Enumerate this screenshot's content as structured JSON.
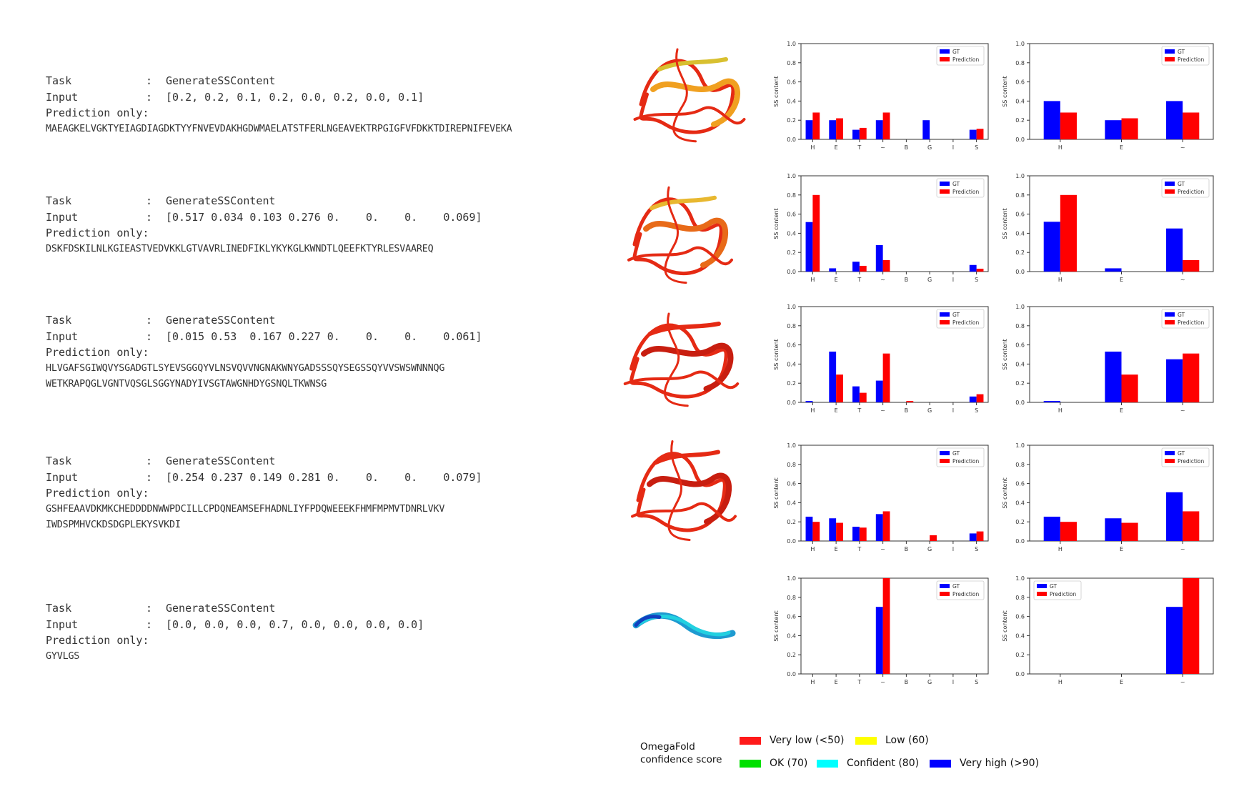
{
  "rows": [
    {
      "task_label": "Task",
      "task_value": "GenerateSSContent",
      "input_label": "Input",
      "input_value": "[0.2, 0.2, 0.1, 0.2, 0.0, 0.2, 0.0, 0.1]",
      "pred_label": "Prediction only:",
      "sequence": [
        "MAEAGKELVGKTYEIAGDIAGDKTYYFNVEVDAKHGDWMAELATSTFERLNGEAVEKTRPGIGFVFDKKTDIREPNIFEVEKA"
      ],
      "structure_colors": [
        "#e52a14",
        "#f0a020",
        "#d8c030"
      ]
    },
    {
      "task_label": "Task",
      "task_value": "GenerateSSContent",
      "input_label": "Input",
      "input_value": "[0.517 0.034 0.103 0.276 0.    0.    0.    0.069]",
      "pred_label": "Prediction only:",
      "sequence": [
        "DSKFDSKILNLKGIEASTVEDVKKLGTVAVRLINEDFIKLYKYKGLKWNDTLQEEFKTYRLESVAAREQ"
      ],
      "structure_colors": [
        "#e52a14",
        "#e86a18",
        "#e8b830"
      ]
    },
    {
      "task_label": "Task",
      "task_value": "GenerateSSContent",
      "input_label": "Input",
      "input_value": "[0.015 0.53  0.167 0.227 0.    0.    0.    0.061]",
      "pred_label": "Prediction only:",
      "sequence": [
        "HLVGAFSGIWQVYSGADGTLSYEVSGGQYVLNSVQVVNGNAKWNYGADSSSQYSEGSSQYVVSWSWNNNQG",
        "WETKRAPQGLVGNTVQSGLSGGYNADYIVSGTAWGNHDYGSNQLTKWNSG"
      ],
      "structure_colors": [
        "#e52a14",
        "#c81e10",
        "#e52a14"
      ]
    },
    {
      "task_label": "Task",
      "task_value": "GenerateSSContent",
      "input_label": "Input",
      "input_value": "[0.254 0.237 0.149 0.281 0.    0.    0.    0.079]",
      "pred_label": "Prediction only:",
      "sequence": [
        "GSHFEAAVDKMKCHEDDDDNWWPDCILLCPDQNEAMSEFHADNLIYFPDQWEEEKFHMFMPMVTDNRLVKV",
        "IWDSPMHVCKDSDGPLEKYSVKDI"
      ],
      "structure_colors": [
        "#e52a14",
        "#c81e10",
        "#e52a14"
      ]
    },
    {
      "task_label": "Task",
      "task_value": "GenerateSSContent",
      "input_label": "Input",
      "input_value": "[0.0, 0.0, 0.0, 0.7, 0.0, 0.0, 0.0, 0.0]",
      "pred_label": "Prediction only:",
      "sequence": [
        "GYVLGS"
      ],
      "structure_colors": [
        "#1e9ad0",
        "#22d0e0",
        "#1040c0"
      ]
    }
  ],
  "legend": {
    "title_line1": "OmegaFold",
    "title_line2": "confidence score",
    "items": [
      {
        "label": "Very low (<50)",
        "color": "#ff1a1a"
      },
      {
        "label": "Low (60)",
        "color": "#ffff00"
      },
      {
        "label": "OK (70)",
        "color": "#00e000"
      },
      {
        "label": "Confident (80)",
        "color": "#00ffff"
      },
      {
        "label": "Very high (>90)",
        "color": "#0000ff"
      }
    ]
  },
  "chart_data": [
    {
      "type": "bar",
      "row": 1,
      "panel": "8-class",
      "categories": [
        "H",
        "E",
        "T",
        "~",
        "B",
        "G",
        "I",
        "S"
      ],
      "ylabel": "SS content",
      "ylim": [
        0,
        1.0
      ],
      "yticks": [
        0.0,
        0.2,
        0.4,
        0.6,
        0.8,
        1.0
      ],
      "legend_position": "top-right",
      "series": [
        {
          "name": "GT",
          "color": "#0000ff",
          "values": [
            0.2,
            0.2,
            0.1,
            0.2,
            0.0,
            0.2,
            0.0,
            0.1
          ]
        },
        {
          "name": "Prediction",
          "color": "#ff0000",
          "values": [
            0.28,
            0.22,
            0.12,
            0.28,
            0.0,
            0.0,
            0.0,
            0.11
          ]
        }
      ]
    },
    {
      "type": "bar",
      "row": 1,
      "panel": "3-class",
      "categories": [
        "H",
        "E",
        "~"
      ],
      "ylabel": "SS content",
      "ylim": [
        0,
        1.0
      ],
      "yticks": [
        0.0,
        0.2,
        0.4,
        0.6,
        0.8,
        1.0
      ],
      "legend_position": "top-right",
      "series": [
        {
          "name": "GT",
          "color": "#0000ff",
          "values": [
            0.4,
            0.2,
            0.4
          ]
        },
        {
          "name": "Prediction",
          "color": "#ff0000",
          "values": [
            0.28,
            0.22,
            0.28
          ]
        }
      ]
    },
    {
      "type": "bar",
      "row": 2,
      "panel": "8-class",
      "categories": [
        "H",
        "E",
        "T",
        "~",
        "B",
        "G",
        "I",
        "S"
      ],
      "ylabel": "SS content",
      "ylim": [
        0,
        1.0
      ],
      "yticks": [
        0.0,
        0.2,
        0.4,
        0.6,
        0.8,
        1.0
      ],
      "legend_position": "top-right",
      "series": [
        {
          "name": "GT",
          "color": "#0000ff",
          "values": [
            0.517,
            0.034,
            0.103,
            0.276,
            0.0,
            0.0,
            0.0,
            0.069
          ]
        },
        {
          "name": "Prediction",
          "color": "#ff0000",
          "values": [
            0.8,
            0.0,
            0.06,
            0.12,
            0.0,
            0.0,
            0.0,
            0.03
          ]
        }
      ]
    },
    {
      "type": "bar",
      "row": 2,
      "panel": "3-class",
      "categories": [
        "H",
        "E",
        "~"
      ],
      "ylabel": "SS content",
      "ylim": [
        0,
        1.0
      ],
      "yticks": [
        0.0,
        0.2,
        0.4,
        0.6,
        0.8,
        1.0
      ],
      "legend_position": "top-right",
      "series": [
        {
          "name": "GT",
          "color": "#0000ff",
          "values": [
            0.52,
            0.034,
            0.45
          ]
        },
        {
          "name": "Prediction",
          "color": "#ff0000",
          "values": [
            0.8,
            0.0,
            0.12
          ]
        }
      ]
    },
    {
      "type": "bar",
      "row": 3,
      "panel": "8-class",
      "categories": [
        "H",
        "E",
        "T",
        "~",
        "B",
        "G",
        "I",
        "S"
      ],
      "ylabel": "SS content",
      "ylim": [
        0,
        1.0
      ],
      "yticks": [
        0.0,
        0.2,
        0.4,
        0.6,
        0.8,
        1.0
      ],
      "legend_position": "top-right",
      "series": [
        {
          "name": "GT",
          "color": "#0000ff",
          "values": [
            0.015,
            0.53,
            0.167,
            0.227,
            0.0,
            0.0,
            0.0,
            0.061
          ]
        },
        {
          "name": "Prediction",
          "color": "#ff0000",
          "values": [
            0.0,
            0.29,
            0.1,
            0.51,
            0.015,
            0.0,
            0.0,
            0.085
          ]
        }
      ]
    },
    {
      "type": "bar",
      "row": 3,
      "panel": "3-class",
      "categories": [
        "H",
        "E",
        "~"
      ],
      "ylabel": "SS content",
      "ylim": [
        0,
        1.0
      ],
      "yticks": [
        0.0,
        0.2,
        0.4,
        0.6,
        0.8,
        1.0
      ],
      "legend_position": "top-right",
      "series": [
        {
          "name": "GT",
          "color": "#0000ff",
          "values": [
            0.015,
            0.53,
            0.45
          ]
        },
        {
          "name": "Prediction",
          "color": "#ff0000",
          "values": [
            0.0,
            0.29,
            0.51
          ]
        }
      ]
    },
    {
      "type": "bar",
      "row": 4,
      "panel": "8-class",
      "categories": [
        "H",
        "E",
        "T",
        "~",
        "B",
        "G",
        "I",
        "S"
      ],
      "ylabel": "SS content",
      "ylim": [
        0,
        1.0
      ],
      "yticks": [
        0.0,
        0.2,
        0.4,
        0.6,
        0.8,
        1.0
      ],
      "legend_position": "top-right",
      "series": [
        {
          "name": "GT",
          "color": "#0000ff",
          "values": [
            0.254,
            0.237,
            0.149,
            0.281,
            0.0,
            0.0,
            0.0,
            0.079
          ]
        },
        {
          "name": "Prediction",
          "color": "#ff0000",
          "values": [
            0.2,
            0.19,
            0.14,
            0.31,
            0.0,
            0.06,
            0.0,
            0.1
          ]
        }
      ]
    },
    {
      "type": "bar",
      "row": 4,
      "panel": "3-class",
      "categories": [
        "H",
        "E",
        "~"
      ],
      "ylabel": "SS content",
      "ylim": [
        0,
        1.0
      ],
      "yticks": [
        0.0,
        0.2,
        0.4,
        0.6,
        0.8,
        1.0
      ],
      "legend_position": "top-right",
      "series": [
        {
          "name": "GT",
          "color": "#0000ff",
          "values": [
            0.254,
            0.237,
            0.509
          ]
        },
        {
          "name": "Prediction",
          "color": "#ff0000",
          "values": [
            0.2,
            0.19,
            0.31
          ]
        }
      ]
    },
    {
      "type": "bar",
      "row": 5,
      "panel": "8-class",
      "categories": [
        "H",
        "E",
        "T",
        "~",
        "B",
        "G",
        "I",
        "S"
      ],
      "ylabel": "SS content",
      "ylim": [
        0,
        1.0
      ],
      "yticks": [
        0.0,
        0.2,
        0.4,
        0.6,
        0.8,
        1.0
      ],
      "legend_position": "top-right",
      "series": [
        {
          "name": "GT",
          "color": "#0000ff",
          "values": [
            0.0,
            0.0,
            0.0,
            0.7,
            0.0,
            0.0,
            0.0,
            0.0
          ]
        },
        {
          "name": "Prediction",
          "color": "#ff0000",
          "values": [
            0.0,
            0.0,
            0.0,
            1.0,
            0.0,
            0.0,
            0.0,
            0.0
          ]
        }
      ]
    },
    {
      "type": "bar",
      "row": 5,
      "panel": "3-class",
      "categories": [
        "H",
        "E",
        "~"
      ],
      "ylabel": "SS content",
      "ylim": [
        0,
        1.0
      ],
      "yticks": [
        0.0,
        0.2,
        0.4,
        0.6,
        0.8,
        1.0
      ],
      "legend_position": "top-left",
      "series": [
        {
          "name": "GT",
          "color": "#0000ff",
          "values": [
            0.0,
            0.0,
            0.7
          ]
        },
        {
          "name": "Prediction",
          "color": "#ff0000",
          "values": [
            0.0,
            0.0,
            1.0
          ]
        }
      ]
    }
  ]
}
